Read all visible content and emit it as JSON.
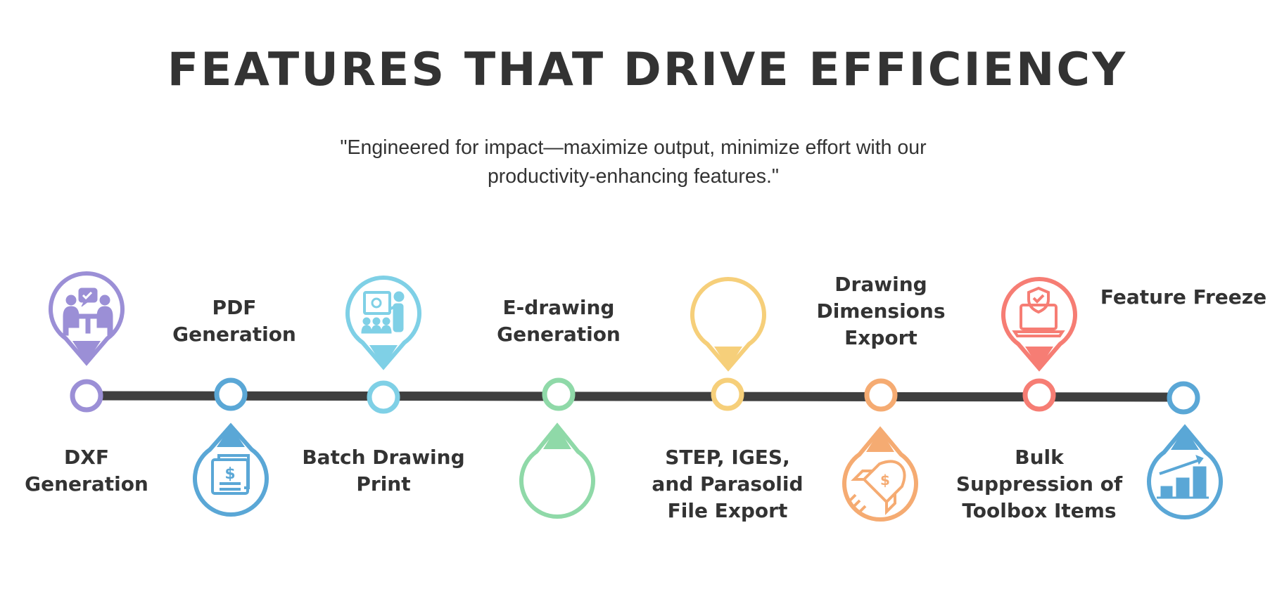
{
  "header": {
    "title": "FEATURES THAT DRIVE EFFICIENCY",
    "subtitle_line1": "\"Engineered for impact—maximize output, minimize effort with our",
    "subtitle_line2": "productivity-enhancing features.\""
  },
  "features": [
    {
      "label": "DXF Generation",
      "color": "#9b8fd6",
      "pin": "up",
      "icon": "team-meeting-icon"
    },
    {
      "label": "PDF Generation",
      "color": "#5aa7d6",
      "pin": "down",
      "icon": "invoice-document-icon"
    },
    {
      "label": "Batch Drawing Print",
      "color": "#7fd0e6",
      "pin": "up",
      "icon": "presentation-icon"
    },
    {
      "label": "E-drawing Generation",
      "color": "#8fd9a8",
      "pin": "down",
      "icon": ""
    },
    {
      "label": "STEP, IGES, and Parasolid File Export",
      "color": "#f6cf7a",
      "pin": "up",
      "icon": ""
    },
    {
      "label": "Drawing Dimensions Export",
      "color": "#f5ab72",
      "pin": "down",
      "icon": "rocket-dollar-icon"
    },
    {
      "label": "Bulk Suppression of Toolbox Items",
      "color": "#f67d74",
      "pin": "up",
      "icon": "laptop-shield-icon"
    },
    {
      "label": "Feature Freeze",
      "color": "#5aa7d6",
      "pin": "down",
      "icon": "growth-chart-icon"
    }
  ],
  "line_color": "#3f3f3f"
}
